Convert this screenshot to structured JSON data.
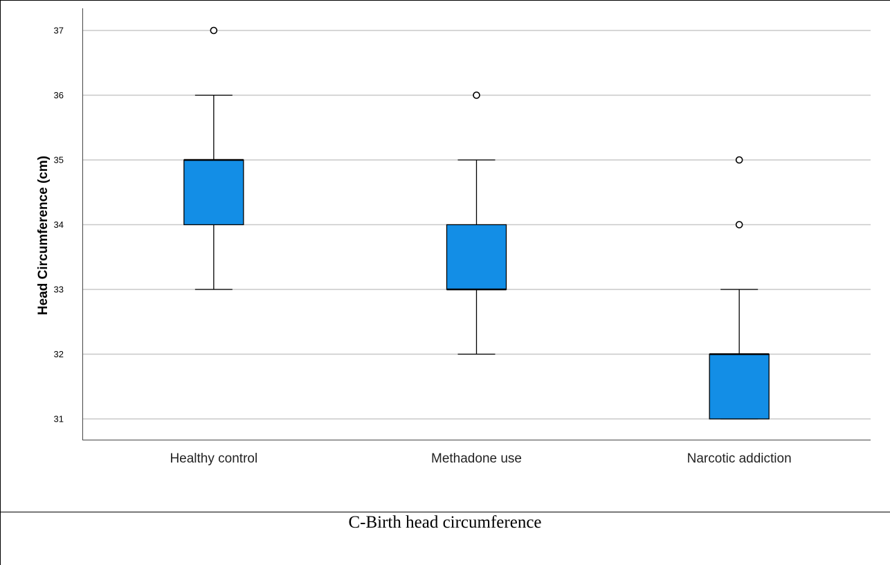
{
  "caption": "C-Birth head circumference",
  "chart_data": {
    "type": "box",
    "ylabel": "Head Circumference (cm)",
    "xlabel": "",
    "ylim": [
      30.7,
      37.3
    ],
    "yticks": [
      31,
      32,
      33,
      34,
      35,
      36,
      37
    ],
    "grid": true,
    "box_color": "#138ee6",
    "categories": [
      "Healthy control",
      "Methadone use",
      "Narcotic addiction"
    ],
    "boxes": [
      {
        "category": "Healthy control",
        "whisker_low": 33,
        "q1": 34,
        "median": 35,
        "q3": 35,
        "whisker_high": 36,
        "outliers": [
          37
        ]
      },
      {
        "category": "Methadone use",
        "whisker_low": 32,
        "q1": 33,
        "median": 33,
        "q3": 34,
        "whisker_high": 35,
        "outliers": [
          36
        ]
      },
      {
        "category": "Narcotic addiction",
        "whisker_low": 31,
        "q1": 31,
        "median": 32,
        "q3": 32,
        "whisker_high": 33,
        "outliers": [
          34,
          35
        ]
      }
    ]
  }
}
